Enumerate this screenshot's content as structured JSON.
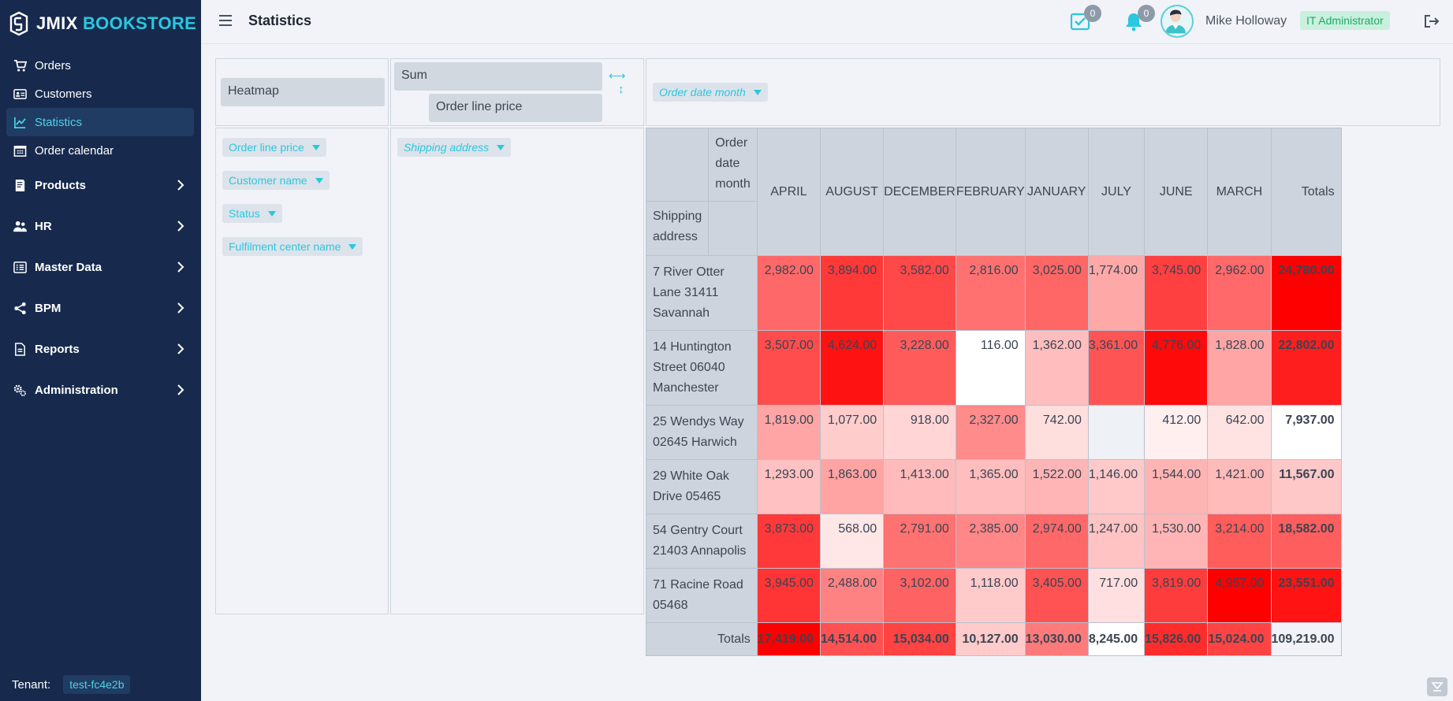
{
  "app": {
    "logo_part1": "JMIX",
    "logo_part2": "BOOKSTORE",
    "page_title": "Statistics"
  },
  "sidebar": {
    "items": [
      {
        "label": "Orders",
        "icon": "cart-icon"
      },
      {
        "label": "Customers",
        "icon": "id-card-icon"
      },
      {
        "label": "Statistics",
        "icon": "chart-icon",
        "active": true
      },
      {
        "label": "Order calendar",
        "icon": "calendar-icon"
      }
    ],
    "groups": [
      {
        "label": "Products",
        "icon": "book-icon"
      },
      {
        "label": "HR",
        "icon": "users-icon"
      },
      {
        "label": "Master Data",
        "icon": "list-icon"
      },
      {
        "label": "BPM",
        "icon": "share-icon"
      },
      {
        "label": "Reports",
        "icon": "report-icon"
      },
      {
        "label": "Administration",
        "icon": "gears-icon"
      }
    ],
    "tenant_label": "Tenant:",
    "tenant_value": "test-fc4e2b"
  },
  "header": {
    "tasks_count": "0",
    "notifications_count": "0",
    "user_name": "Mike Holloway",
    "role": "IT Administrator"
  },
  "pivot": {
    "renderer": "Heatmap",
    "aggregator": "Sum",
    "aggregator_attribute": "Order line price",
    "column_attributes": [
      "Order date month"
    ],
    "unused_attributes": [
      "Order line price",
      "Customer name",
      "Status",
      "Fulfilment center name"
    ],
    "row_attributes": [
      "Shipping address"
    ],
    "col_axis_label": "Order date month",
    "row_axis_label": "Shipping address",
    "totals_label": "Totals",
    "columns": [
      "APRIL",
      "AUGUST",
      "DECEMBER",
      "FEBRUARY",
      "JANUARY",
      "JULY",
      "JUNE",
      "MARCH"
    ],
    "rows": [
      {
        "address": "7 River Otter Lane 31411 Savannah",
        "values": [
          "2,982.00",
          "3,894.00",
          "3,582.00",
          "2,816.00",
          "3,025.00",
          "1,774.00",
          "3,745.00",
          "2,962.00"
        ],
        "total": "24,780.00"
      },
      {
        "address": "14 Huntington Street 06040 Manchester",
        "values": [
          "3,507.00",
          "4,624.00",
          "3,228.00",
          "116.00",
          "1,362.00",
          "3,361.00",
          "4,776.00",
          "1,828.00"
        ],
        "total": "22,802.00"
      },
      {
        "address": "25 Wendys Way 02645 Harwich",
        "values": [
          "1,819.00",
          "1,077.00",
          "918.00",
          "2,327.00",
          "742.00",
          "",
          "412.00",
          "642.00"
        ],
        "total": "7,937.00"
      },
      {
        "address": "29 White Oak Drive 05465",
        "values": [
          "1,293.00",
          "1,863.00",
          "1,413.00",
          "1,365.00",
          "1,522.00",
          "1,146.00",
          "1,544.00",
          "1,421.00"
        ],
        "total": "11,567.00"
      },
      {
        "address": "54 Gentry Court 21403 Annapolis",
        "values": [
          "3,873.00",
          "568.00",
          "2,791.00",
          "2,385.00",
          "2,974.00",
          "1,247.00",
          "1,530.00",
          "3,214.00"
        ],
        "total": "18,582.00"
      },
      {
        "address": "71 Racine Road 05468",
        "values": [
          "3,945.00",
          "2,488.00",
          "3,102.00",
          "1,118.00",
          "3,405.00",
          "717.00",
          "3,819.00",
          "4,957.00"
        ],
        "total": "23,551.00"
      }
    ],
    "col_totals": [
      "17,419.00",
      "14,514.00",
      "15,034.00",
      "10,127.00",
      "13,030.00",
      "8,245.00",
      "15,826.00",
      "15,024.00"
    ],
    "grand_total": "109,219.00",
    "heat_color": "#ff0000"
  }
}
